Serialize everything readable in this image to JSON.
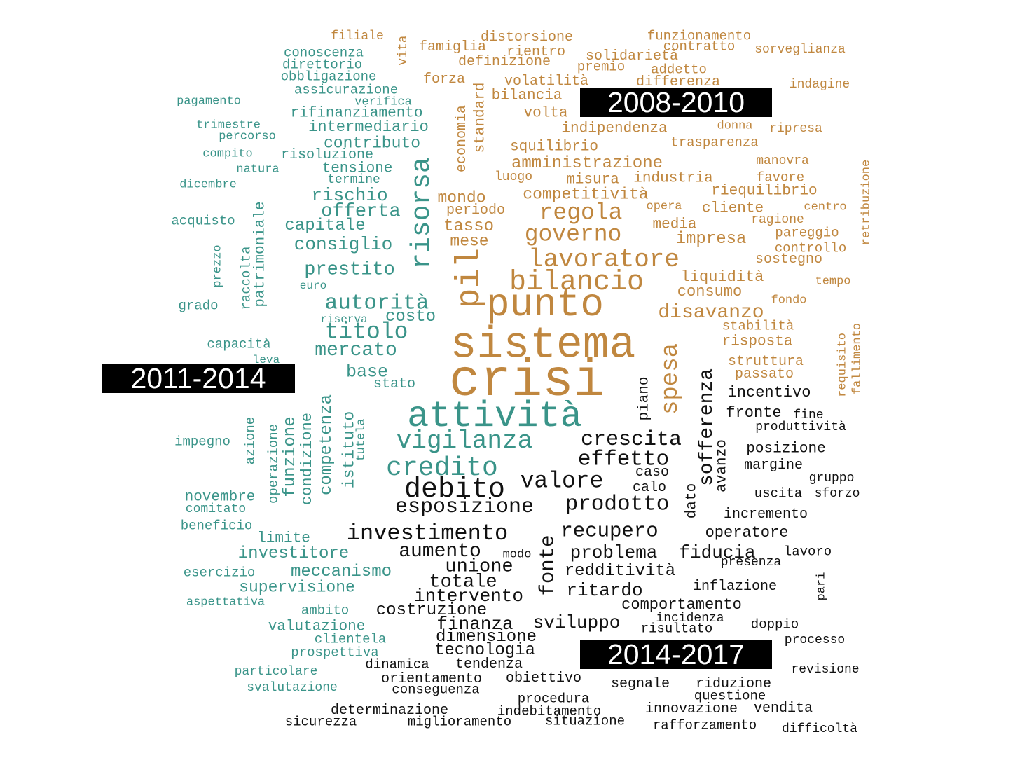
{
  "palette": {
    "orange": "#c0873f",
    "teal": "#3a9489",
    "black": "#111111"
  },
  "periods": [
    "2008-2010",
    "2011-2014",
    "2014-2017"
  ],
  "words": [
    [
      "filiale",
      "o",
      18,
      510,
      52,
      0
    ],
    [
      "vita",
      "o",
      18,
      576,
      72,
      1
    ],
    [
      "distorsione",
      "o",
      20,
      752,
      54,
      0
    ],
    [
      "funzionamento",
      "o",
      19,
      998,
      52,
      0
    ],
    [
      "famiglia",
      "o",
      20,
      646,
      68,
      0
    ],
    [
      "contratto",
      "o",
      19,
      998,
      67,
      0
    ],
    [
      "sorveglianza",
      "o",
      18,
      1142,
      71,
      0
    ],
    [
      "rientro",
      "o",
      20,
      765,
      75,
      0
    ],
    [
      "solidarietà",
      "o",
      20,
      902,
      81,
      0
    ],
    [
      "definizione",
      "o",
      20,
      720,
      89,
      0
    ],
    [
      "premio",
      "o",
      19,
      858,
      96,
      0
    ],
    [
      "addetto",
      "o",
      19,
      969,
      100,
      0
    ],
    [
      "forza",
      "o",
      20,
      634,
      114,
      0
    ],
    [
      "volatilità",
      "o",
      20,
      780,
      117,
      0
    ],
    [
      "differenza",
      "o",
      20,
      968,
      118,
      0
    ],
    [
      "indagine",
      "o",
      18,
      1170,
      121,
      0
    ],
    [
      "standard",
      "o",
      21,
      686,
      168,
      1
    ],
    [
      "bilancia",
      "o",
      21,
      752,
      137,
      0
    ],
    [
      "economia",
      "o",
      20,
      660,
      198,
      1
    ],
    [
      "volta",
      "o",
      21,
      779,
      162,
      0
    ],
    [
      "indipendenza",
      "o",
      21,
      877,
      184,
      0
    ],
    [
      "donna",
      "o",
      17,
      1049,
      180,
      0
    ],
    [
      "ripresa",
      "o",
      18,
      1136,
      184,
      0
    ],
    [
      "squilibrio",
      "o",
      21,
      791,
      210,
      0
    ],
    [
      "trasparenza",
      "o",
      19,
      1020,
      204,
      0
    ],
    [
      "amministrazione",
      "o",
      24,
      838,
      234,
      0
    ],
    [
      "manovra",
      "o",
      18,
      1117,
      230,
      0
    ],
    [
      "retribuzione",
      "o",
      17,
      1237,
      289,
      1
    ],
    [
      "luogo",
      "o",
      18,
      733,
      253,
      0
    ],
    [
      "misura",
      "o",
      21,
      846,
      257,
      0
    ],
    [
      "industria",
      "o",
      21,
      961,
      255,
      0
    ],
    [
      "favore",
      "o",
      19,
      1114,
      254,
      0
    ],
    [
      "mondo",
      "o",
      23,
      659,
      283,
      0
    ],
    [
      "competitività",
      "o",
      23,
      836,
      278,
      0
    ],
    [
      "riequilibrio",
      "o",
      21,
      1091,
      273,
      0
    ],
    [
      "periodo",
      "o",
      20,
      679,
      301,
      0
    ],
    [
      "regola",
      "o",
      33,
      829,
      304,
      0
    ],
    [
      "opera",
      "o",
      17,
      948,
      295,
      0
    ],
    [
      "cliente",
      "o",
      21,
      1046,
      298,
      0
    ],
    [
      "centro",
      "o",
      17,
      1178,
      296,
      0
    ],
    [
      "tasso",
      "o",
      24,
      669,
      324,
      0
    ],
    [
      "ragione",
      "o",
      18,
      1110,
      314,
      0
    ],
    [
      "governo",
      "o",
      33,
      818,
      335,
      0
    ],
    [
      "media",
      "o",
      21,
      963,
      321,
      0
    ],
    [
      "pareggio",
      "o",
      19,
      1152,
      333,
      0
    ],
    [
      "mese",
      "o",
      23,
      670,
      345,
      0
    ],
    [
      "impresa",
      "o",
      24,
      1015,
      342,
      0
    ],
    [
      "controllo",
      "o",
      19,
      1157,
      355,
      0
    ],
    [
      "pil",
      "o",
      48,
      671,
      397,
      1
    ],
    [
      "lavoratore",
      "o",
      36,
      862,
      371,
      0
    ],
    [
      "sostegno",
      "o",
      20,
      1126,
      371,
      0
    ],
    [
      "bilancio",
      "o",
      40,
      823,
      404,
      0
    ],
    [
      "liquidità",
      "o",
      22,
      1031,
      396,
      0
    ],
    [
      "tempo",
      "o",
      17,
      1189,
      402,
      0
    ],
    [
      "consumo",
      "o",
      22,
      1013,
      417,
      0
    ],
    [
      "punto",
      "o",
      56,
      778,
      435,
      0
    ],
    [
      "fondo",
      "o",
      17,
      1126,
      429,
      0
    ],
    [
      "disavanzo",
      "o",
      28,
      1015,
      447,
      0
    ],
    [
      "requisito",
      "o",
      17,
      1203,
      521,
      1
    ],
    [
      "fallimento",
      "o",
      17,
      1224,
      512,
      1
    ],
    [
      "stabilità",
      "o",
      19,
      1082,
      466,
      0
    ],
    [
      "sistema",
      "o",
      63,
      775,
      493,
      0
    ],
    [
      "risposta",
      "o",
      21,
      1081,
      488,
      0
    ],
    [
      "spesa",
      "o",
      34,
      958,
      541,
      1
    ],
    [
      "struttura",
      "o",
      20,
      1093,
      517,
      0
    ],
    [
      "passato",
      "o",
      20,
      1091,
      535,
      0
    ],
    [
      "crisi",
      "o",
      74,
      752,
      545,
      0
    ],
    [
      "conoscenza",
      "t",
      19,
      462,
      76,
      0
    ],
    [
      "direttorio",
      "t",
      19,
      460,
      93,
      0
    ],
    [
      "obbligazione",
      "t",
      19,
      469,
      110,
      0
    ],
    [
      "assicurazione",
      "t",
      19,
      494,
      129,
      0
    ],
    [
      "pagamento",
      "t",
      17,
      298,
      145,
      0
    ],
    [
      "verifica",
      "t",
      17,
      547,
      146,
      0
    ],
    [
      "rifinanziamento",
      "t",
      21,
      509,
      162,
      0
    ],
    [
      "trimestre",
      "t",
      17,
      326,
      179,
      0
    ],
    [
      "intermediario",
      "t",
      22,
      526,
      182,
      0
    ],
    [
      "percorso",
      "t",
      17,
      353,
      195,
      0
    ],
    [
      "contributo",
      "t",
      23,
      531,
      205,
      0
    ],
    [
      "compito",
      "t",
      17,
      325,
      220,
      0
    ],
    [
      "risoluzione",
      "t",
      20,
      467,
      222,
      0
    ],
    [
      "risorsa",
      "t",
      38,
      603,
      304,
      1
    ],
    [
      "natura",
      "t",
      17,
      368,
      242,
      0
    ],
    [
      "tensione",
      "t",
      21,
      510,
      241,
      0
    ],
    [
      "termine",
      "t",
      18,
      505,
      257,
      0
    ],
    [
      "dicembre",
      "t",
      17,
      297,
      264,
      0
    ],
    [
      "patrimoniale",
      "t",
      21,
      372,
      363,
      1
    ],
    [
      "rischio",
      "t",
      26,
      499,
      279,
      0
    ],
    [
      "offerta",
      "t",
      27,
      515,
      303,
      0
    ],
    [
      "acquisto",
      "t",
      19,
      290,
      316,
      0
    ],
    [
      "capitale",
      "t",
      24,
      464,
      323,
      0
    ],
    [
      "consiglio",
      "t",
      26,
      490,
      349,
      0
    ],
    [
      "prezzo",
      "t",
      17,
      311,
      380,
      1
    ],
    [
      "raccolta",
      "t",
      19,
      352,
      397,
      1
    ],
    [
      "prestito",
      "t",
      27,
      499,
      386,
      0
    ],
    [
      "euro",
      "t",
      16,
      447,
      408,
      0
    ],
    [
      "autorità",
      "t",
      31,
      538,
      433,
      0
    ],
    [
      "grado",
      "t",
      19,
      283,
      437,
      0
    ],
    [
      "riserva",
      "t",
      16,
      491,
      456,
      0
    ],
    [
      "costo",
      "t",
      24,
      586,
      453,
      0
    ],
    [
      "titolo",
      "t",
      33,
      523,
      474,
      0
    ],
    [
      "capacità",
      "t",
      19,
      341,
      492,
      0
    ],
    [
      "mercato",
      "t",
      28,
      508,
      501,
      0
    ],
    [
      "leva",
      "t",
      16,
      380,
      514,
      0
    ],
    [
      "base",
      "t",
      25,
      524,
      531,
      0
    ],
    [
      "competenza",
      "t",
      24,
      467,
      635,
      1
    ],
    [
      "stato",
      "t",
      20,
      563,
      549,
      0
    ],
    [
      "istituto",
      "t",
      23,
      499,
      642,
      1
    ],
    [
      "attività",
      "t",
      52,
      706,
      595,
      0
    ],
    [
      "tutela",
      "t",
      17,
      516,
      628,
      1
    ],
    [
      "condizione",
      "t",
      22,
      439,
      655,
      1
    ],
    [
      "funzione",
      "t",
      24,
      415,
      652,
      1
    ],
    [
      "azione",
      "t",
      19,
      358,
      629,
      1
    ],
    [
      "impegno",
      "t",
      19,
      289,
      631,
      0
    ],
    [
      "vigilanza",
      "t",
      36,
      663,
      630,
      0
    ],
    [
      "operazione",
      "t",
      19,
      391,
      662,
      1
    ],
    [
      "credito",
      "t",
      38,
      631,
      669,
      0
    ],
    [
      "novembre",
      "t",
      21,
      314,
      710,
      0
    ],
    [
      "comitato",
      "t",
      18,
      308,
      727,
      0
    ],
    [
      "beneficio",
      "t",
      19,
      309,
      751,
      0
    ],
    [
      "limite",
      "t",
      21,
      405,
      769,
      0
    ],
    [
      "investitore",
      "t",
      24,
      419,
      791,
      0
    ],
    [
      "esercizio",
      "t",
      19,
      313,
      818,
      0
    ],
    [
      "meccanismo",
      "t",
      24,
      487,
      817,
      0
    ],
    [
      "supervisione",
      "t",
      23,
      424,
      839,
      0
    ],
    [
      "aspettativa",
      "t",
      17,
      322,
      860,
      0
    ],
    [
      "ambito",
      "t",
      19,
      464,
      872,
      0
    ],
    [
      "valutazione",
      "t",
      21,
      452,
      895,
      0
    ],
    [
      "clientela",
      "t",
      19,
      500,
      913,
      0
    ],
    [
      "prospettiva",
      "t",
      19,
      478,
      932,
      0
    ],
    [
      "particolare",
      "t",
      18,
      394,
      959,
      0
    ],
    [
      "svalutazione",
      "t",
      18,
      417,
      982,
      0
    ],
    [
      "incentivo",
      "k",
      22,
      1098,
      561,
      0
    ],
    [
      "fronte",
      "k",
      22,
      1076,
      590,
      0
    ],
    [
      "fine",
      "k",
      18,
      1154,
      593,
      0
    ],
    [
      "sofferenza",
      "k",
      28,
      1010,
      610,
      1
    ],
    [
      "produttività",
      "k",
      18,
      1143,
      610,
      0
    ],
    [
      "piano",
      "k",
      21,
      920,
      569,
      1
    ],
    [
      "avanzo",
      "k",
      21,
      1031,
      665,
      1
    ],
    [
      "crescita",
      "k",
      30,
      901,
      628,
      0
    ],
    [
      "posizione",
      "k",
      21,
      1122,
      641,
      0
    ],
    [
      "effetto",
      "k",
      31,
      890,
      656,
      0
    ],
    [
      "margine",
      "k",
      20,
      1104,
      665,
      0
    ],
    [
      "caso",
      "k",
      20,
      931,
      675,
      0
    ],
    [
      "gruppo",
      "k",
      18,
      1187,
      683,
      0
    ],
    [
      "valore",
      "k",
      33,
      802,
      687,
      0
    ],
    [
      "calo",
      "k",
      20,
      927,
      697,
      0
    ],
    [
      "debito",
      "k",
      40,
      649,
      700,
      0
    ],
    [
      "dato",
      "k",
      21,
      988,
      715,
      1
    ],
    [
      "uscita",
      "k",
      19,
      1111,
      705,
      0
    ],
    [
      "sforzo",
      "k",
      18,
      1195,
      705,
      0
    ],
    [
      "prodotto",
      "k",
      31,
      881,
      720,
      0
    ],
    [
      "esposizione",
      "k",
      30,
      663,
      724,
      0
    ],
    [
      "incremento",
      "k",
      20,
      1093,
      735,
      0
    ],
    [
      "recupero",
      "k",
      29,
      870,
      758,
      0
    ],
    [
      "investimento",
      "k",
      32,
      610,
      762,
      0
    ],
    [
      "operatore",
      "k",
      22,
      1066,
      761,
      0
    ],
    [
      "fonte",
      "k",
      29,
      782,
      807,
      1
    ],
    [
      "aumento",
      "k",
      28,
      628,
      788,
      0
    ],
    [
      "modo",
      "k",
      17,
      738,
      792,
      0
    ],
    [
      "problema",
      "k",
      26,
      876,
      789,
      0
    ],
    [
      "fiducia",
      "k",
      26,
      1024,
      789,
      0
    ],
    [
      "lavoro",
      "k",
      19,
      1153,
      788,
      0
    ],
    [
      "presenza",
      "k",
      18,
      1072,
      803,
      0
    ],
    [
      "unione",
      "k",
      27,
      684,
      810,
      0
    ],
    [
      "redditività",
      "k",
      24,
      885,
      816,
      0
    ],
    [
      "totale",
      "k",
      27,
      661,
      832,
      0
    ],
    [
      "inflazione",
      "k",
      20,
      1049,
      838,
      0
    ],
    [
      "pari",
      "k",
      17,
      1173,
      837,
      1
    ],
    [
      "ritardo",
      "k",
      26,
      863,
      843,
      0
    ],
    [
      "intervento",
      "k",
      26,
      669,
      851,
      0
    ],
    [
      "comportamento",
      "k",
      22,
      973,
      864,
      0
    ],
    [
      "costruzione",
      "k",
      24,
      616,
      872,
      0
    ],
    [
      "incidenza",
      "k",
      18,
      985,
      883,
      0
    ],
    [
      "sviluppo",
      "k",
      26,
      823,
      889,
      0
    ],
    [
      "finanza",
      "k",
      26,
      678,
      891,
      0
    ],
    [
      "doppio",
      "k",
      19,
      1106,
      892,
      0
    ],
    [
      "risultato",
      "k",
      19,
      966,
      898,
      0
    ],
    [
      "dimensione",
      "k",
      24,
      694,
      910,
      0
    ],
    [
      "processo",
      "k",
      18,
      1163,
      914,
      0
    ],
    [
      "tecnologia",
      "k",
      24,
      692,
      929,
      0
    ],
    [
      "dinamica",
      "k",
      19,
      567,
      949,
      0
    ],
    [
      "tendenza",
      "k",
      20,
      698,
      949,
      0
    ],
    [
      "revisione",
      "k",
      18,
      1178,
      956,
      0
    ],
    [
      "orientamento",
      "k",
      20,
      616,
      970,
      0
    ],
    [
      "obiettivo",
      "k",
      20,
      776,
      969,
      0
    ],
    [
      "segnale",
      "k",
      20,
      914,
      977,
      0
    ],
    [
      "riduzione",
      "k",
      20,
      1047,
      977,
      0
    ],
    [
      "conseguenza",
      "k",
      19,
      622,
      985,
      0
    ],
    [
      "questione",
      "k",
      19,
      1042,
      994,
      0
    ],
    [
      "procedura",
      "k",
      19,
      790,
      998,
      0
    ],
    [
      "determinazione",
      "k",
      20,
      556,
      1015,
      0
    ],
    [
      "innovazione",
      "k",
      20,
      987,
      1013,
      0
    ],
    [
      "vendita",
      "k",
      20,
      1118,
      1012,
      0
    ],
    [
      "indebitamento",
      "k",
      19,
      784,
      1016,
      0
    ],
    [
      "sicurezza",
      "k",
      19,
      458,
      1031,
      0
    ],
    [
      "miglioramento",
      "k",
      19,
      656,
      1031,
      0
    ],
    [
      "situazione",
      "k",
      19,
      835,
      1030,
      0
    ],
    [
      "rafforzamento",
      "k",
      19,
      1006,
      1036,
      0
    ],
    [
      "difficoltà",
      "k",
      18,
      1170,
      1041,
      0
    ]
  ]
}
